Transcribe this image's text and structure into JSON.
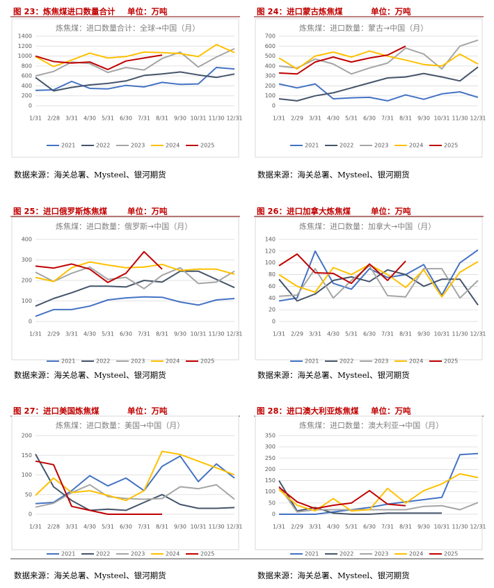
{
  "chart_data": [
    {
      "type": "line",
      "figure_title": "图 23：炼焦煤进口数量合计",
      "unit": "单位：万吨",
      "title": "炼焦煤：进口数量合计：全球→中国（月）",
      "categories": [
        "1/31",
        "2/28",
        "3/31",
        "4/30",
        "5/31",
        "6/30",
        "7/31",
        "8/31",
        "9/30",
        "10/31",
        "11/30",
        "12/31"
      ],
      "ylim": [
        0,
        1400
      ],
      "yticks": [
        0,
        200,
        400,
        600,
        800,
        1000,
        1200,
        1400
      ],
      "grid": true,
      "legend": "bottom",
      "series": [
        {
          "name": "2021",
          "color": "#4472c4",
          "values": [
            310,
            320,
            490,
            350,
            340,
            410,
            380,
            470,
            430,
            440,
            770,
            740
          ]
        },
        {
          "name": "2022",
          "color": "#44546a",
          "values": [
            570,
            300,
            370,
            420,
            450,
            500,
            610,
            640,
            680,
            620,
            570,
            640
          ]
        },
        {
          "name": "2023",
          "color": "#a5a5a5",
          "values": [
            600,
            690,
            880,
            850,
            670,
            770,
            720,
            950,
            1080,
            780,
            980,
            1150
          ]
        },
        {
          "name": "2024",
          "color": "#ffc000",
          "values": [
            990,
            790,
            920,
            1060,
            960,
            990,
            1080,
            1070,
            1050,
            990,
            1230,
            1070
          ]
        },
        {
          "name": "2025",
          "color": "#c00000",
          "values": [
            1000,
            890,
            860,
            880,
            730,
            900,
            960,
            1020,
            null,
            null,
            null,
            null
          ]
        }
      ],
      "source": "数据来源：海关总署、Mysteel、银河期货"
    },
    {
      "type": "line",
      "figure_title": "图 24：进口蒙古炼焦煤",
      "unit": "单位：万吨",
      "title": "炼焦煤：进口数量：蒙古→中国（月）",
      "categories": [
        "1/31",
        "2/29",
        "3/31",
        "4/30",
        "5/31",
        "6/30",
        "7/31",
        "8/31",
        "9/30",
        "10/31",
        "11/30",
        "12/31"
      ],
      "ylim": [
        0,
        700
      ],
      "yticks": [
        0,
        100,
        200,
        300,
        400,
        500,
        600,
        700
      ],
      "grid": true,
      "legend": "bottom",
      "series": [
        {
          "name": "2021",
          "color": "#4472c4",
          "values": [
            220,
            180,
            220,
            70,
            80,
            85,
            50,
            110,
            65,
            120,
            140,
            85
          ]
        },
        {
          "name": "2022",
          "color": "#44546a",
          "values": [
            70,
            50,
            100,
            130,
            180,
            230,
            280,
            290,
            325,
            290,
            250,
            390
          ]
        },
        {
          "name": "2023",
          "color": "#a5a5a5",
          "values": [
            400,
            380,
            470,
            420,
            320,
            380,
            430,
            580,
            520,
            370,
            600,
            660
          ]
        },
        {
          "name": "2024",
          "color": "#ffc000",
          "values": [
            480,
            370,
            500,
            540,
            490,
            550,
            500,
            460,
            415,
            400,
            520,
            420
          ]
        },
        {
          "name": "2025",
          "color": "#c00000",
          "values": [
            330,
            320,
            440,
            490,
            440,
            480,
            510,
            600,
            null,
            null,
            null,
            null
          ]
        }
      ],
      "source": "数据来源：海关总署、Mysteel、银河期货"
    },
    {
      "type": "line",
      "figure_title": "图 25：进口俄罗斯炼焦煤",
      "unit": "单位：万吨",
      "title": "炼焦煤：进口数量：俄罗斯→中国（月）",
      "categories": [
        "1/31",
        "2/29",
        "3/31",
        "4/30",
        "5/31",
        "6/30",
        "7/31",
        "8/31",
        "9/30",
        "10/31",
        "11/30",
        "12/31"
      ],
      "ylim": [
        0,
        400
      ],
      "yticks": [
        0,
        100,
        200,
        300,
        400
      ],
      "grid": true,
      "legend": "bottom",
      "series": [
        {
          "name": "2021",
          "color": "#4472c4",
          "values": [
            25,
            58,
            58,
            75,
            105,
            115,
            120,
            118,
            95,
            80,
            105,
            112
          ]
        },
        {
          "name": "2022",
          "color": "#44546a",
          "values": [
            75,
            112,
            140,
            172,
            172,
            168,
            200,
            192,
            245,
            245,
            205,
            165
          ]
        },
        {
          "name": "2023",
          "color": "#a5a5a5",
          "values": [
            240,
            195,
            235,
            265,
            205,
            215,
            160,
            225,
            262,
            185,
            192,
            245
          ]
        },
        {
          "name": "2024",
          "color": "#ffc000",
          "values": [
            215,
            195,
            262,
            290,
            275,
            262,
            265,
            278,
            248,
            255,
            255,
            230
          ]
        },
        {
          "name": "2025",
          "color": "#c00000",
          "values": [
            270,
            260,
            280,
            255,
            190,
            235,
            340,
            255,
            null,
            null,
            null,
            null
          ]
        }
      ],
      "source": "数据来源：海关总署、Mysteel、银河期货"
    },
    {
      "type": "line",
      "figure_title": "图 26：进口加拿大炼焦煤",
      "unit": "单位：万吨",
      "title": "炼焦煤：进口数量：加拿大→中国（月）",
      "categories": [
        "1/31",
        "2/29",
        "3/31",
        "4/30",
        "5/31",
        "6/30",
        "7/31",
        "8/31",
        "9/30",
        "10/31",
        "11/30",
        "12/31"
      ],
      "ylim": [
        0,
        140
      ],
      "yticks": [
        0,
        20,
        40,
        60,
        80,
        100,
        120,
        140
      ],
      "grid": true,
      "legend": "bottom",
      "series": [
        {
          "name": "2021",
          "color": "#4472c4",
          "values": [
            35,
            40,
            120,
            65,
            55,
            90,
            75,
            80,
            97,
            45,
            100,
            122
          ]
        },
        {
          "name": "2022",
          "color": "#44546a",
          "values": [
            72,
            35,
            47,
            70,
            76,
            68,
            88,
            80,
            60,
            72,
            72,
            28
          ]
        },
        {
          "name": "2023",
          "color": "#a5a5a5",
          "values": [
            43,
            45,
            90,
            40,
            70,
            95,
            44,
            42,
            90,
            90,
            40,
            70
          ]
        },
        {
          "name": "2024",
          "color": "#ffc000",
          "values": [
            80,
            60,
            50,
            92,
            80,
            97,
            80,
            58,
            88,
            42,
            84,
            102
          ]
        },
        {
          "name": "2025",
          "color": "#c00000",
          "values": [
            95,
            115,
            83,
            82,
            65,
            98,
            70,
            103,
            null,
            null,
            null,
            null
          ]
        }
      ],
      "source": "数据来源：海关总署、Mysteel、银河期货"
    },
    {
      "type": "line",
      "figure_title": "图 27：进口美国炼焦煤",
      "unit": "单位：万吨",
      "title": "炼焦煤：进口数量：美国→中国（月）",
      "categories": [
        "1/31",
        "2/28",
        "3/31",
        "4/30",
        "5/31",
        "6/30",
        "7/31",
        "8/31",
        "9/30",
        "10/31",
        "11/30",
        "12/31"
      ],
      "ylim": [
        0,
        200
      ],
      "yticks": [
        0,
        50,
        100,
        150,
        200
      ],
      "grid": true,
      "legend": "bottom",
      "series": [
        {
          "name": "2021",
          "color": "#4472c4",
          "values": [
            27,
            30,
            60,
            98,
            72,
            92,
            60,
            122,
            148,
            83,
            128,
            92
          ]
        },
        {
          "name": "2022",
          "color": "#44546a",
          "values": [
            153,
            70,
            35,
            10,
            13,
            10,
            30,
            50,
            25,
            15,
            15,
            17
          ]
        },
        {
          "name": "2023",
          "color": "#a5a5a5",
          "values": [
            18,
            28,
            55,
            75,
            45,
            40,
            38,
            40,
            70,
            65,
            75,
            38
          ]
        },
        {
          "name": "2024",
          "color": "#ffc000",
          "values": [
            48,
            92,
            55,
            60,
            48,
            35,
            60,
            160,
            152,
            135,
            118,
            100
          ]
        },
        {
          "name": "2025",
          "color": "#c00000",
          "values": [
            135,
            126,
            20,
            10,
            0,
            0,
            0,
            0,
            null,
            null,
            null,
            null
          ]
        }
      ],
      "source": "数据来源：海关总署、Mysteel、银河期货"
    },
    {
      "type": "line",
      "figure_title": "图 28：进口澳大利亚炼焦煤",
      "unit": "单位：万吨",
      "title": "炼焦煤：进口数量：澳大利亚→中国（月）",
      "categories": [
        "1/31",
        "2/29",
        "3/31",
        "4/30",
        "5/31",
        "6/30",
        "7/31",
        "8/31",
        "9/30",
        "10/31",
        "11/30",
        "12/31"
      ],
      "ylim": [
        0,
        350
      ],
      "yticks": [
        0,
        50,
        100,
        150,
        200,
        250,
        300,
        350
      ],
      "grid": true,
      "legend": "bottom",
      "series": [
        {
          "name": "2021",
          "color": "#4472c4",
          "values": [
            0,
            0,
            0,
            10,
            20,
            30,
            45,
            55,
            65,
            75,
            265,
            270
          ]
        },
        {
          "name": "2022",
          "color": "#44546a",
          "values": [
            150,
            15,
            30,
            5,
            0,
            0,
            5,
            5,
            5,
            5,
            null,
            null
          ]
        },
        {
          "name": "2023",
          "color": "#a5a5a5",
          "values": [
            125,
            10,
            20,
            20,
            20,
            20,
            20,
            20,
            35,
            38,
            20,
            52
          ]
        },
        {
          "name": "2024",
          "color": "#ffc000",
          "values": [
            110,
            40,
            15,
            70,
            15,
            20,
            115,
            50,
            105,
            135,
            180,
            163
          ]
        },
        {
          "name": "2025",
          "color": "#c00000",
          "values": [
            120,
            55,
            25,
            40,
            50,
            105,
            45,
            38,
            null,
            null,
            null,
            null
          ]
        }
      ],
      "source": "数据来源：海关总署、Mysteel、银河期货"
    }
  ]
}
